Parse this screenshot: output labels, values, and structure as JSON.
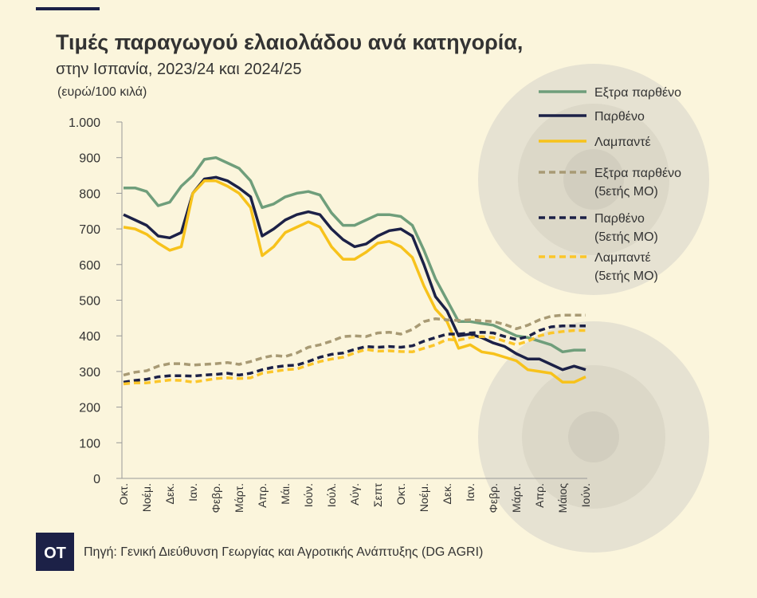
{
  "chart_data": {
    "type": "line",
    "title": "Τιμές παραγωγού ελαιολάδου ανά κατηγορία,",
    "subtitle": "στην Ισπανία, 2023/24 και 2024/25",
    "y_label": "(ευρώ/100 κιλά)",
    "source": "Πηγή: Γενική Διεύθυνση Γεωργίας και Αγροτικής Ανάπτυξης (DG AGRI)",
    "logo": "ΟΤ",
    "categories": [
      "Οκτ.",
      null,
      "Νοέμ.",
      null,
      "Δεκ.",
      null,
      "Ιαν.",
      null,
      "Φεβρ.",
      null,
      "Μάρτ.",
      null,
      "Απρ.",
      null,
      "Μάι.",
      null,
      "Ιούν.",
      null,
      "Ιούλ.",
      null,
      "Αύγ.",
      null,
      "Σεπτ",
      null,
      "Οκτ.",
      null,
      "Νοέμ.",
      null,
      "Δεκ.",
      null,
      "Ιαν.",
      null,
      "Φεβρ.",
      null,
      "Μάρτ.",
      null,
      "Απρ.",
      null,
      "Μάιος",
      null,
      "Ιούν."
    ],
    "ylim": [
      0,
      1000
    ],
    "yticks": [
      0,
      100,
      200,
      300,
      400,
      500,
      600,
      700,
      800,
      900,
      {
        "value": 1000,
        "label": "1.000"
      }
    ],
    "grid": false,
    "series": [
      {
        "name": "Εξτρα παρθένο",
        "color": "#6f9e7b",
        "dash": false,
        "values": [
          815,
          815,
          805,
          765,
          775,
          820,
          850,
          895,
          900,
          885,
          870,
          835,
          760,
          770,
          790,
          800,
          805,
          795,
          745,
          710,
          710,
          725,
          740,
          740,
          735,
          710,
          640,
          560,
          500,
          440,
          440,
          435,
          430,
          415,
          400,
          395,
          385,
          375,
          355,
          360,
          360
        ]
      },
      {
        "name": "Παρθένο",
        "color": "#1c2147",
        "dash": false,
        "values": [
          740,
          725,
          710,
          680,
          675,
          690,
          800,
          840,
          845,
          835,
          815,
          790,
          680,
          700,
          725,
          740,
          748,
          740,
          700,
          670,
          650,
          658,
          680,
          695,
          700,
          680,
          600,
          510,
          470,
          400,
          405,
          395,
          380,
          370,
          350,
          335,
          335,
          320,
          305,
          315,
          305
        ]
      },
      {
        "name": "Λαμπαντέ",
        "color": "#f7c21b",
        "dash": false,
        "values": [
          705,
          700,
          685,
          660,
          640,
          650,
          800,
          835,
          835,
          820,
          800,
          760,
          625,
          650,
          690,
          705,
          720,
          705,
          650,
          615,
          615,
          635,
          660,
          665,
          650,
          620,
          540,
          475,
          440,
          365,
          375,
          355,
          350,
          340,
          330,
          305,
          300,
          295,
          270,
          270,
          285
        ]
      },
      {
        "name": "Εξτρα παρθένο (5ετής ΜΟ)",
        "color": "#a89a74",
        "dash": true,
        "values": [
          290,
          298,
          302,
          315,
          322,
          322,
          318,
          320,
          322,
          325,
          320,
          328,
          338,
          345,
          342,
          352,
          368,
          375,
          385,
          398,
          400,
          398,
          408,
          410,
          405,
          418,
          440,
          448,
          445,
          443,
          445,
          442,
          440,
          432,
          420,
          430,
          445,
          455,
          458,
          458,
          458
        ]
      },
      {
        "name": "Παρθένο (5ετής ΜΟ)",
        "color": "#1c2147",
        "dash": true,
        "values": [
          270,
          275,
          278,
          285,
          288,
          288,
          287,
          290,
          292,
          295,
          290,
          295,
          305,
          312,
          316,
          318,
          328,
          340,
          348,
          352,
          362,
          370,
          368,
          370,
          368,
          372,
          385,
          395,
          405,
          405,
          408,
          410,
          408,
          398,
          390,
          398,
          415,
          425,
          428,
          428,
          428
        ]
      },
      {
        "name": "Λαμπαντέ (5ετής ΜΟ)",
        "color": "#fbc62a",
        "dash": true,
        "values": [
          265,
          268,
          268,
          272,
          276,
          275,
          270,
          275,
          280,
          282,
          280,
          282,
          295,
          300,
          305,
          307,
          318,
          328,
          335,
          340,
          352,
          362,
          357,
          358,
          356,
          355,
          365,
          375,
          390,
          388,
          395,
          398,
          395,
          385,
          375,
          385,
          400,
          408,
          412,
          415,
          415
        ]
      }
    ]
  }
}
